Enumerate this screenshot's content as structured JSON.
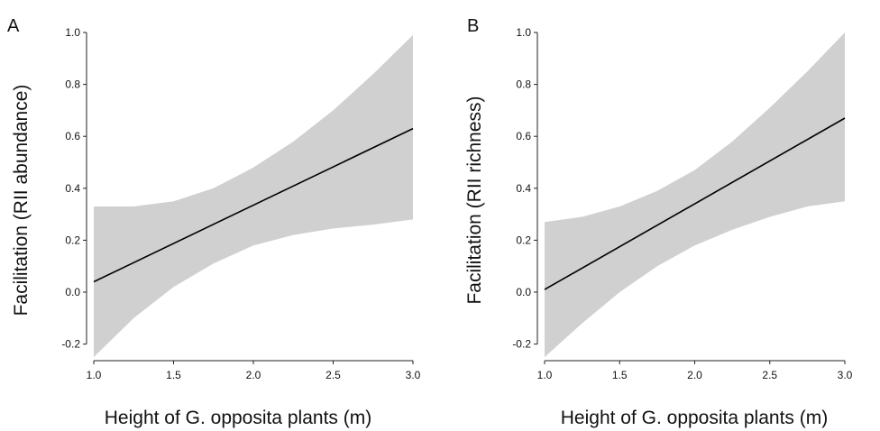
{
  "chart_data": [
    {
      "type": "line",
      "panel_label": "A",
      "xlabel": "Height of G. opposita plants (m)",
      "ylabel": "Facilitation (RII abundance)",
      "xlim": [
        1.0,
        3.0
      ],
      "ylim": [
        -0.25,
        1.0
      ],
      "x_ticks": [
        1.0,
        1.5,
        2.0,
        2.5,
        3.0
      ],
      "x_tick_labels": [
        "1.0",
        "1.5",
        "2.0",
        "2.5",
        "3.0"
      ],
      "y_ticks": [
        -0.2,
        0.0,
        0.2,
        0.4,
        0.6,
        0.8,
        1.0
      ],
      "y_tick_labels": [
        "-0.2",
        "0.0",
        "0.2",
        "0.4",
        "0.6",
        "0.8",
        "1.0"
      ],
      "grid": false,
      "line_color": "#000000",
      "band_color": "#d0d0d0",
      "series": [
        {
          "x": [
            1.0,
            3.0
          ],
          "y": [
            0.04,
            0.63
          ]
        }
      ],
      "confidence_band": {
        "x": [
          1.0,
          1.25,
          1.5,
          1.75,
          2.0,
          2.25,
          2.5,
          2.75,
          3.0
        ],
        "lower": [
          -0.25,
          -0.1,
          0.02,
          0.11,
          0.18,
          0.22,
          0.245,
          0.26,
          0.28
        ],
        "upper": [
          0.33,
          0.33,
          0.35,
          0.4,
          0.48,
          0.58,
          0.7,
          0.84,
          0.99
        ]
      }
    },
    {
      "type": "line",
      "panel_label": "B",
      "xlabel": "Height of G. opposita plants (m)",
      "ylabel": "Facilitation (RII richness)",
      "xlim": [
        1.0,
        3.0
      ],
      "ylim": [
        -0.25,
        1.0
      ],
      "x_ticks": [
        1.0,
        1.5,
        2.0,
        2.5,
        3.0
      ],
      "x_tick_labels": [
        "1.0",
        "1.5",
        "2.0",
        "2.5",
        "3.0"
      ],
      "y_ticks": [
        -0.2,
        0.0,
        0.2,
        0.4,
        0.6,
        0.8,
        1.0
      ],
      "y_tick_labels": [
        "-0.2",
        "0.0",
        "0.2",
        "0.4",
        "0.6",
        "0.8",
        "1.0"
      ],
      "grid": false,
      "line_color": "#000000",
      "band_color": "#d0d0d0",
      "series": [
        {
          "x": [
            1.0,
            3.0
          ],
          "y": [
            0.01,
            0.67
          ]
        }
      ],
      "confidence_band": {
        "x": [
          1.0,
          1.25,
          1.5,
          1.75,
          2.0,
          2.25,
          2.5,
          2.75,
          3.0
        ],
        "lower": [
          -0.25,
          -0.12,
          0.0,
          0.1,
          0.18,
          0.24,
          0.29,
          0.33,
          0.35
        ],
        "upper": [
          0.27,
          0.29,
          0.33,
          0.39,
          0.47,
          0.58,
          0.71,
          0.85,
          1.0
        ]
      }
    }
  ]
}
